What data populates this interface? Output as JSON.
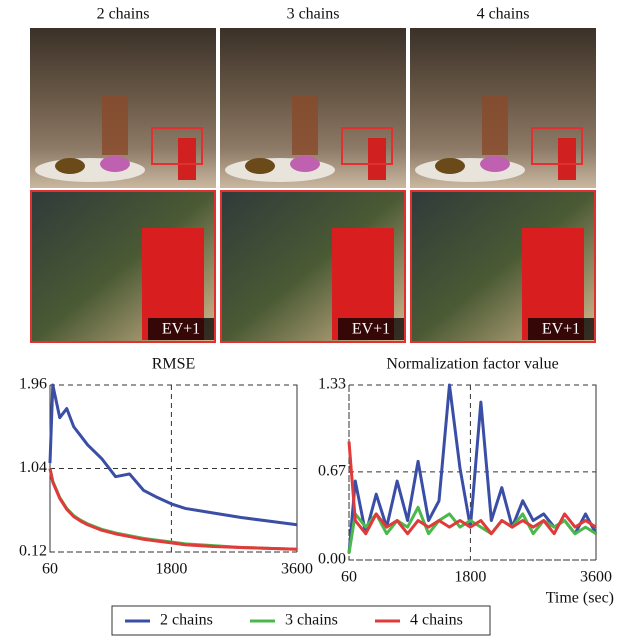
{
  "images": {
    "columns": [
      "2 chains",
      "3 chains",
      "4 chains"
    ],
    "inset_labels": [
      "EV+1",
      "EV+1",
      "EV+1"
    ]
  },
  "chart_data": [
    {
      "type": "line",
      "title": "RMSE",
      "x": [
        60,
        100,
        200,
        300,
        400,
        500,
        600,
        800,
        1000,
        1200,
        1400,
        1600,
        1800,
        2000,
        2400,
        2800,
        3200,
        3600
      ],
      "xlim": [
        60,
        3600
      ],
      "ylim": [
        0.12,
        1.96
      ],
      "xticks": [
        60,
        1800,
        3600
      ],
      "yticks": [
        0.12,
        1.04,
        1.96
      ],
      "grid": true,
      "series": [
        {
          "name": "2 chains",
          "color": "#3a4ea6",
          "values": [
            1.1,
            1.96,
            1.6,
            1.7,
            1.5,
            1.4,
            1.3,
            1.15,
            0.95,
            0.98,
            0.8,
            0.72,
            0.65,
            0.6,
            0.55,
            0.5,
            0.46,
            0.42
          ]
        },
        {
          "name": "3 chains",
          "color": "#4cb84c",
          "values": [
            1.04,
            0.9,
            0.72,
            0.6,
            0.52,
            0.47,
            0.43,
            0.37,
            0.33,
            0.3,
            0.27,
            0.25,
            0.23,
            0.21,
            0.19,
            0.17,
            0.16,
            0.15
          ]
        },
        {
          "name": "4 chains",
          "color": "#e03a3a",
          "values": [
            1.04,
            0.89,
            0.71,
            0.59,
            0.51,
            0.46,
            0.42,
            0.36,
            0.32,
            0.29,
            0.26,
            0.24,
            0.22,
            0.2,
            0.18,
            0.17,
            0.16,
            0.15
          ]
        }
      ]
    },
    {
      "type": "line",
      "title": "Normalization factor value",
      "xlabel": "Time (sec)",
      "legend": "bottom",
      "x": [
        60,
        150,
        300,
        450,
        600,
        750,
        900,
        1050,
        1200,
        1350,
        1500,
        1650,
        1800,
        1950,
        2100,
        2250,
        2400,
        2550,
        2700,
        2850,
        3000,
        3150,
        3300,
        3450,
        3600
      ],
      "xlim": [
        60,
        3600
      ],
      "ylim": [
        0,
        1.33
      ],
      "xticks": [
        60,
        1800,
        3600
      ],
      "yticks": [
        {
          "value": 0,
          "label": "0.00"
        },
        0.67,
        1.33
      ],
      "grid": true,
      "series": [
        {
          "name": "2 chains",
          "color": "#3a4ea6",
          "values": [
            0.05,
            0.6,
            0.2,
            0.5,
            0.25,
            0.6,
            0.3,
            0.75,
            0.3,
            0.45,
            1.33,
            0.7,
            0.25,
            1.2,
            0.3,
            0.55,
            0.25,
            0.45,
            0.3,
            0.35,
            0.25,
            0.3,
            0.2,
            0.35,
            0.2
          ]
        },
        {
          "name": "3 chains",
          "color": "#4cb84c",
          "values": [
            0.05,
            0.35,
            0.25,
            0.35,
            0.2,
            0.3,
            0.25,
            0.4,
            0.2,
            0.3,
            0.35,
            0.25,
            0.3,
            0.25,
            0.2,
            0.3,
            0.25,
            0.35,
            0.2,
            0.3,
            0.25,
            0.3,
            0.2,
            0.25,
            0.2
          ]
        },
        {
          "name": "4 chains",
          "color": "#e03a3a",
          "values": [
            0.9,
            0.3,
            0.2,
            0.35,
            0.25,
            0.3,
            0.2,
            0.3,
            0.25,
            0.3,
            0.25,
            0.3,
            0.25,
            0.3,
            0.2,
            0.3,
            0.25,
            0.3,
            0.25,
            0.3,
            0.2,
            0.35,
            0.25,
            0.3,
            0.25
          ]
        }
      ]
    }
  ]
}
